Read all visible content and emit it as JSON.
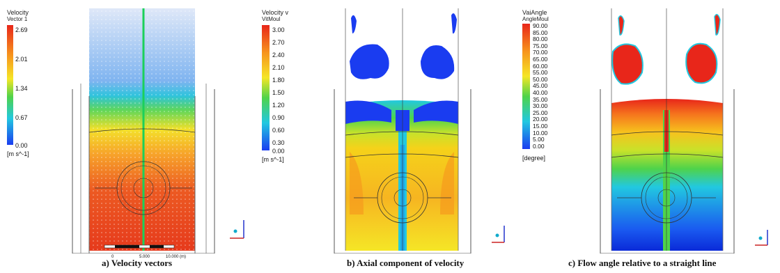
{
  "panels": [
    {
      "legend_title_1": "Velocity",
      "legend_title_2": "Vector 1",
      "ticks": [
        "2.69",
        "2.01",
        "1.34",
        "0.67",
        "0.00"
      ],
      "unit": "[m s^-1]",
      "caption": "a) Velocity vectors",
      "scalebar": {
        "labels": [
          "0",
          "5.000",
          "10.000 (m)"
        ]
      }
    },
    {
      "legend_title_1": "Velocity v",
      "legend_title_2": "VitMoul",
      "ticks": [
        "3.00",
        "2.70",
        "2.40",
        "2.10",
        "1.80",
        "1.50",
        "1.20",
        "0.90",
        "0.60",
        "0.30",
        "0.00"
      ],
      "unit": "[m s^-1]",
      "caption": "b) Axial component of velocity"
    },
    {
      "legend_title_1": "VaiAngle",
      "legend_title_2": "AngleMoul",
      "ticks": [
        "90.00",
        "85.00",
        "80.00",
        "75.00",
        "70.00",
        "65.00",
        "60.00",
        "55.00",
        "50.00",
        "45.00",
        "40.00",
        "35.00",
        "30.00",
        "25.00",
        "20.00",
        "15.00",
        "10.00",
        "5.00",
        "0.00"
      ],
      "unit": "[degree]",
      "caption": "c) Flow angle relative to a straight line"
    }
  ],
  "colors": {
    "red": "#e8261a",
    "orange": "#f7941d",
    "yellow": "#f5e626",
    "green": "#4fd34a",
    "cyan": "#22c8e0",
    "blue": "#1a3cf0",
    "darkblue": "#0a14c8"
  }
}
